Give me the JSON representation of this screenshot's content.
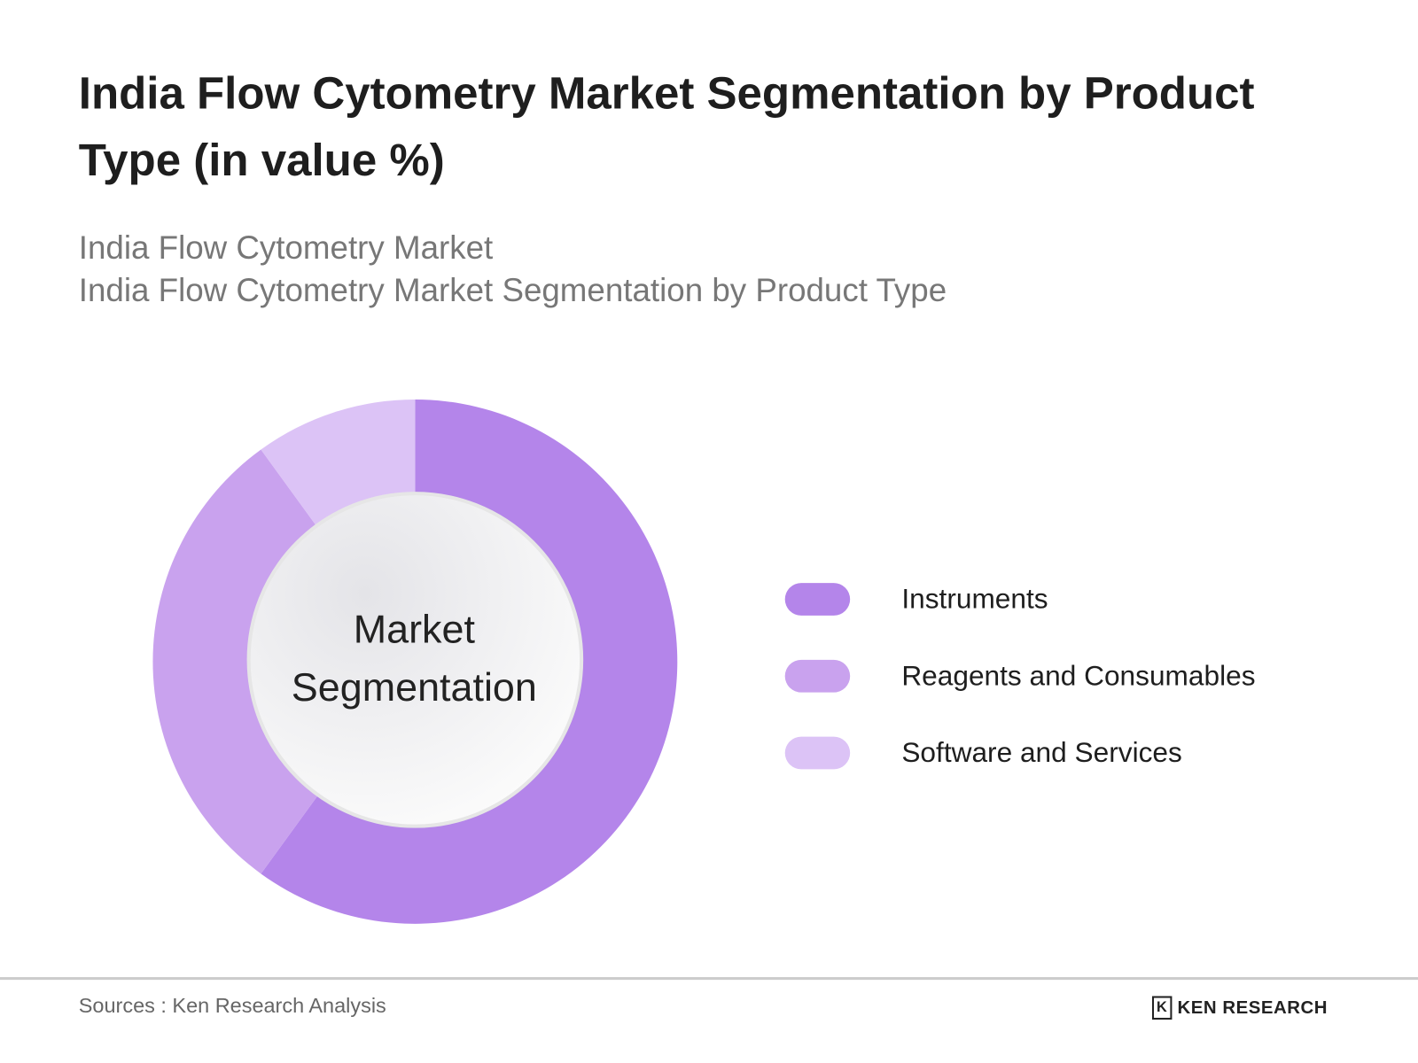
{
  "title": "India Flow Cytometry Market Segmentation by Product Type (in value %)",
  "subtitle_1": "India Flow Cytometry Market",
  "subtitle_2": "India Flow Cytometry Market Segmentation by Product Type",
  "center_label_1": "Market",
  "center_label_2": "Segmentation",
  "footer": {
    "source": "Sources : Ken Research Analysis",
    "logo_text": "KEN RESEARCH"
  },
  "chart_data": {
    "type": "pie",
    "donut": true,
    "title": "India Flow Cytometry Market Segmentation by Product Type (in value %)",
    "categories": [
      "Instruments",
      "Reagents and Consumables",
      "Software and Services"
    ],
    "values": [
      60,
      30,
      10
    ],
    "colors": [
      "#b485ea",
      "#c9a2ee",
      "#dcc3f6"
    ],
    "legend_position": "right"
  }
}
